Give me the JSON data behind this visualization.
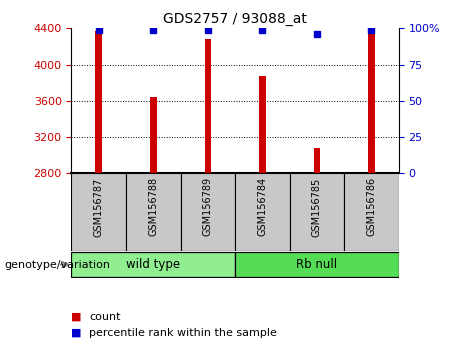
{
  "title": "GDS2757 / 93088_at",
  "samples": [
    "GSM156787",
    "GSM156788",
    "GSM156789",
    "GSM156784",
    "GSM156785",
    "GSM156786"
  ],
  "counts": [
    4370,
    3640,
    4280,
    3870,
    3080,
    4390
  ],
  "percentile_ranks": [
    99,
    99,
    99,
    99,
    96,
    99
  ],
  "ylim_left": [
    2800,
    4400
  ],
  "ylim_right": [
    0,
    100
  ],
  "yticks_left": [
    2800,
    3200,
    3600,
    4000,
    4400
  ],
  "yticks_right": [
    0,
    25,
    50,
    75,
    100
  ],
  "bar_color": "#cc0000",
  "dot_color": "#0000cc",
  "groups": [
    {
      "label": "wild type",
      "color": "#90ee90"
    },
    {
      "label": "Rb null",
      "color": "#55dd55"
    }
  ],
  "genotype_label": "genotype/variation",
  "legend_count_label": "count",
  "legend_percentile_label": "percentile rank within the sample",
  "tick_color_left": "#cc0000",
  "tick_color_right": "#0000cc",
  "background_xtick": "#c8c8c8",
  "bar_width": 0.12,
  "grid_yticks": [
    3200,
    3600,
    4000
  ]
}
